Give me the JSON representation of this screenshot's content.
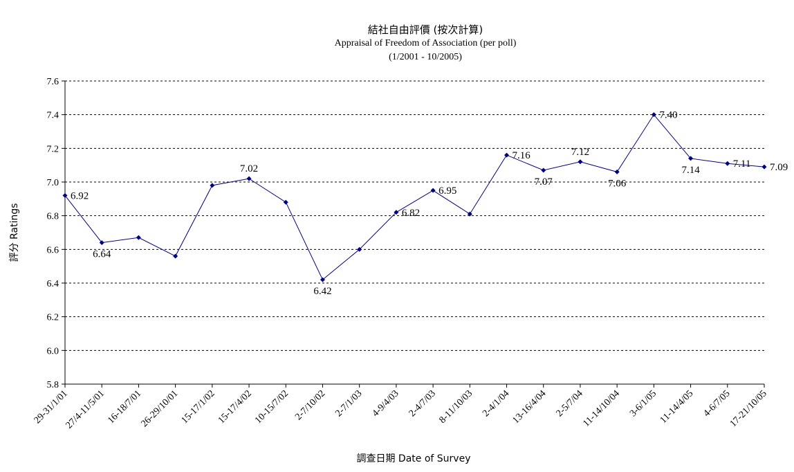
{
  "chart_data": {
    "type": "line",
    "title": "結社自由評價 (按次計算)",
    "subtitle": "Appraisal of Freedom of Association (per poll)",
    "subtitle2": "(1/2001 - 10/2005)",
    "xlabel": "調查日期 Date of Survey",
    "ylabel": "評分 Ratings",
    "ylim": [
      5.8,
      7.6
    ],
    "yticks": [
      "7.6",
      "7.4",
      "7.2",
      "7.0",
      "6.8",
      "6.6",
      "6.4",
      "6.2",
      "6.0",
      "5.8"
    ],
    "grid": true,
    "series_color": "#000080",
    "categories": [
      "29-31/1/01",
      "27/4-11/5/01",
      "16-18/7/01",
      "26-29/10/01",
      "15-17/1/02",
      "15-17/4/02",
      "10-15/7/02",
      "2-7/10/02",
      "2-7/1/03",
      "4-9/4/03",
      "2-4/7/03",
      "8-11/10/03",
      "2-4/1/04",
      "13-16/4/04",
      "2-5/7/04",
      "11-14/10/04",
      "3-6/1/05",
      "11-14/4/05",
      "4-6/7/05",
      "17-21/10/05"
    ],
    "values": [
      6.92,
      6.64,
      6.67,
      6.56,
      6.98,
      7.02,
      6.88,
      6.42,
      6.6,
      6.82,
      6.95,
      6.81,
      7.16,
      7.07,
      7.12,
      7.06,
      7.4,
      7.14,
      7.11,
      7.09
    ],
    "data_labels": [
      {
        "i": 0,
        "text": "6.92",
        "pos": "right"
      },
      {
        "i": 1,
        "text": "6.64",
        "pos": "below"
      },
      {
        "i": 5,
        "text": "7.02",
        "pos": "above"
      },
      {
        "i": 7,
        "text": "6.42",
        "pos": "below"
      },
      {
        "i": 9,
        "text": "6.82",
        "pos": "right"
      },
      {
        "i": 10,
        "text": "6.95",
        "pos": "right"
      },
      {
        "i": 12,
        "text": "7.16",
        "pos": "right"
      },
      {
        "i": 13,
        "text": "7.07",
        "pos": "below"
      },
      {
        "i": 14,
        "text": "7.12",
        "pos": "above"
      },
      {
        "i": 15,
        "text": "7.06",
        "pos": "below"
      },
      {
        "i": 16,
        "text": "7.40",
        "pos": "right"
      },
      {
        "i": 17,
        "text": "7.14",
        "pos": "below"
      },
      {
        "i": 18,
        "text": "7.11",
        "pos": "right"
      },
      {
        "i": 19,
        "text": "7.09",
        "pos": "right"
      }
    ]
  }
}
